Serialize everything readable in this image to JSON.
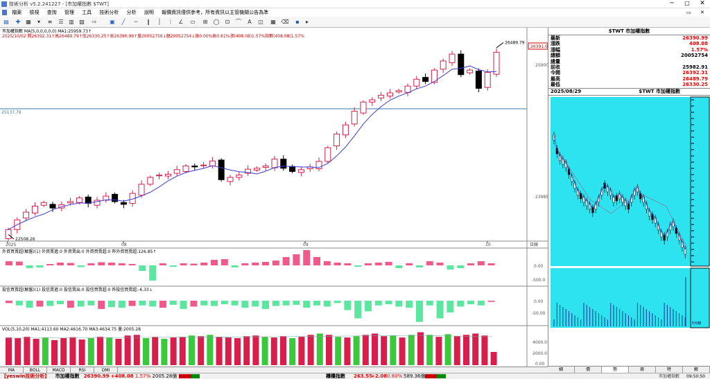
{
  "window": {
    "title": "技術分析 v5.2.241227 - [市加權指數 $TWT]"
  },
  "menu": [
    "檔案",
    "檢視",
    "查詢",
    "管理",
    "工具",
    "技術分析",
    "分析",
    "說明",
    "報價資訊僅供參考，所有資訊以主管機關公告為準"
  ],
  "chart": {
    "legend_line1": "市加權指數 MA(5,0,0,0,0,0) MA1:25959.73↑",
    "legend_line2": "2025/10/02 開26392.31↑高26489.79↑低26330.25↑收26390.99↑量20052756↓額20052754↓換0.00%振0.61%漲(408.08)1.57%指數(408.08)1.57%",
    "price_high_label": "26489.79",
    "price_low_label": "22508.26",
    "hline_label": "25137.79",
    "last_price_tag": "26391.0",
    "axis_right": [
      "25900",
      "23985"
    ],
    "x_labels": [
      "2025",
      "08",
      "09",
      "10"
    ],
    "foreign_legend": "外資買賣超(解盤)(1) 外資賣進:0 外資賣出:0 外資買賣超:0 昨外資買賣超:126.85↑",
    "foreign_axis": [
      "0.00",
      "-500.0"
    ],
    "trust_legend": "投信買賣超(解盤)(1) 投信賣進:0 投信賣出:0 投信買賣超:0 昨投信買賣超:-6.33↓",
    "trust_axis": [
      "0.00",
      "-50.00"
    ],
    "vol_legend": "VOL(5,10,20) MA1:4113.60 MA2:4616.70 MA3:4634.75 量:2005.28",
    "vol_axis": [
      "4000.0",
      "2000.0",
      "0.00"
    ],
    "unit_label": "日線",
    "colors": {
      "up": "#d81e4a",
      "down": "#000000",
      "ma": "#3b3bd9",
      "foreign_up": "#f05a8a",
      "foreign_down": "#5ce6a0",
      "vol_green": "#3cc83c",
      "vol_red": "#d81e4a"
    }
  },
  "chart_data": {
    "type": "candlestick",
    "title": "市加權指數 $TWT",
    "candles_close": [
      22508,
      22720,
      22890,
      23020,
      23100,
      22980,
      23050,
      23120,
      23200,
      23080,
      23150,
      23240,
      23120,
      23060,
      23300,
      23500,
      23650,
      23700,
      23720,
      23820,
      23900,
      23880,
      23920,
      24010,
      23600,
      23650,
      23700,
      23830,
      23850,
      23900,
      24050,
      23850,
      23780,
      23820,
      23880,
      24000,
      24300,
      24600,
      24800,
      25100,
      25300,
      25350,
      25450,
      25500,
      25550,
      25650,
      25800,
      25750,
      26000,
      26200,
      26350,
      25900,
      26000,
      25600,
      25950,
      26391
    ],
    "ma5_last": 25959.73,
    "foreign_values": [
      60,
      55,
      -40,
      -30,
      20,
      40,
      35,
      -25,
      30,
      45,
      40,
      30,
      20,
      -80,
      -220,
      30,
      -20,
      30,
      25,
      40,
      80,
      90,
      -30,
      30,
      40,
      50,
      70,
      120,
      160,
      220,
      120,
      60,
      40,
      30,
      -20,
      30,
      40,
      50,
      -40,
      30,
      -30,
      60,
      40,
      -60,
      -40,
      30,
      60,
      30
    ],
    "trust_values": [
      -20,
      -40,
      -60,
      -50,
      -45,
      -30,
      -60,
      -50,
      -40,
      -70,
      -55,
      -60,
      -45,
      -40,
      -50,
      -60,
      -35,
      -70,
      -50,
      -40,
      -45,
      -30,
      -40,
      -60,
      -50,
      -70,
      -45,
      -40,
      -35,
      -60,
      -40,
      -50,
      -20,
      -80,
      -150,
      -90,
      -40,
      -30,
      -50,
      -60,
      -180,
      -40,
      -150,
      -100,
      -50,
      -30,
      -40,
      -10
    ],
    "volume": [
      4200,
      4100,
      4300,
      4000,
      4200,
      3800,
      4100,
      4250,
      3900,
      4100,
      4300,
      4200,
      4000,
      4500,
      4600,
      4100,
      4300,
      4000,
      4200,
      4300,
      4500,
      4400,
      4600,
      4300,
      4200,
      4100,
      4400,
      4500,
      4300,
      4200,
      4400,
      4100,
      4300,
      4600,
      4800,
      4600,
      4300,
      4200,
      4400,
      4600,
      4800,
      4400,
      4500,
      4200,
      4600,
      5000,
      4600,
      4300,
      4700,
      4400,
      4600,
      4800,
      4500,
      2005
    ]
  },
  "quote": {
    "title": "$TWT 市加權指數",
    "rows": [
      {
        "label": "最新",
        "value": "26390.99",
        "red": true
      },
      {
        "label": "漲跌",
        "value": "408.08",
        "red": true
      },
      {
        "label": "漲幅",
        "value": "1.57%",
        "red": true
      },
      {
        "label": "總額",
        "value": "20052754",
        "red": false
      },
      {
        "label": "總量",
        "value": "",
        "red": false
      },
      {
        "label": "前收",
        "value": "25982.91",
        "red": false
      },
      {
        "label": "今開",
        "value": "26392.31",
        "red": true
      },
      {
        "label": "最高",
        "value": "26489.79",
        "red": true
      },
      {
        "label": "最低",
        "value": "26330.25",
        "red": true
      }
    ],
    "mini_date": "2025/08/29",
    "mini_title": "$TWT 市加權指數",
    "mini_vol_label": "5分線"
  },
  "tabs": [
    "MA",
    "BOLL",
    "MACD",
    "RSI",
    "DMI"
  ],
  "right_tabs": [
    "細",
    "價",
    "勢",
    "周",
    "特",
    "解"
  ],
  "status": {
    "broker": "【yeswin",
    "app": "技術分析】",
    "index1_name": "市加權指數",
    "index1_value": "26390.99",
    "index1_change": "+408.08",
    "index1_pct": "1.57%",
    "index1_amount": "2005.28億",
    "index2_name": "櫃檯指數",
    "index2_value": "263.55",
    "index2_change": "+2.08",
    "index2_pct": "0.80%",
    "index2_amount": "589.36億",
    "right_label": "市加權指數",
    "clock": "09:50:50"
  }
}
